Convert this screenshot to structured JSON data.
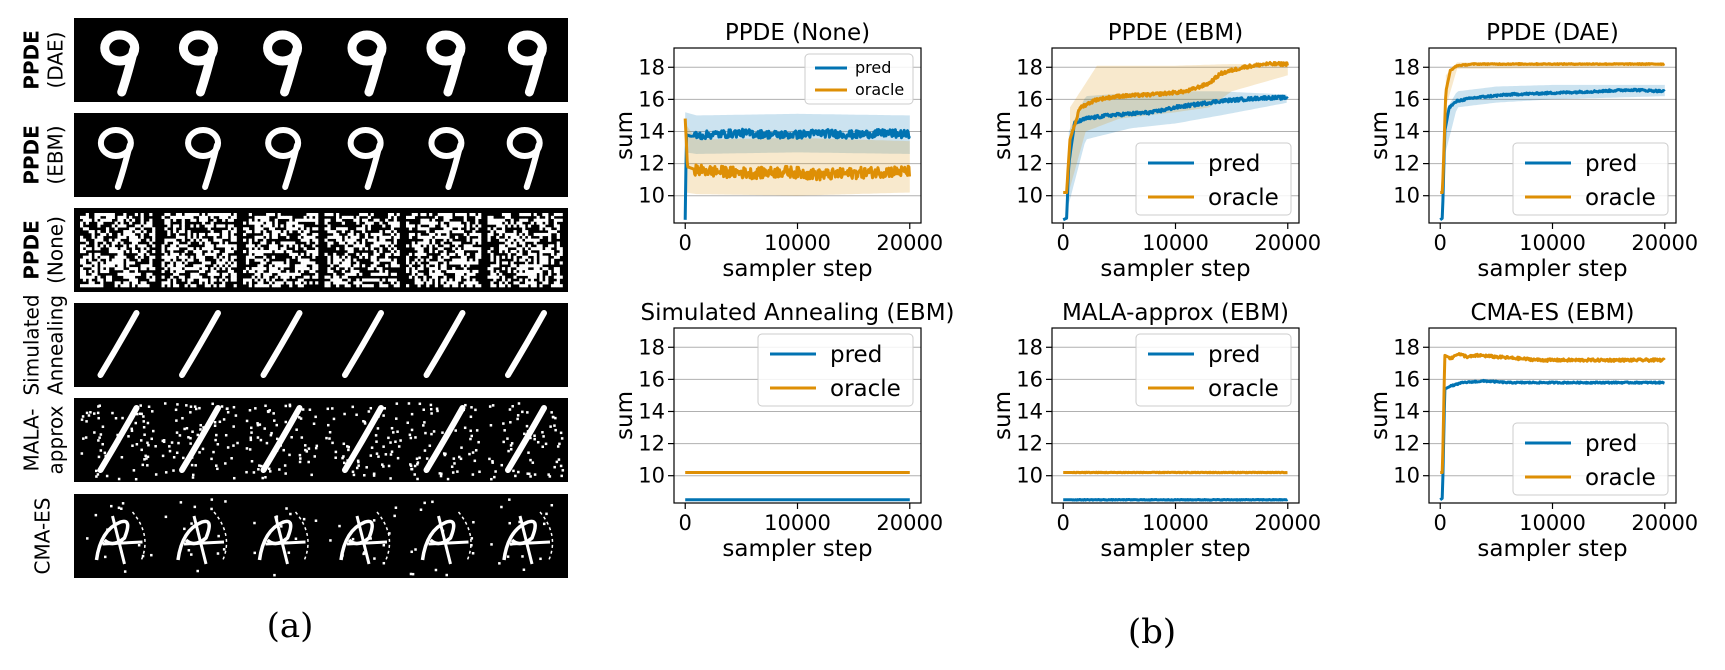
{
  "figure": {
    "panel_a_label": "(a)",
    "panel_b_label": "(b)"
  },
  "colors": {
    "pred": "#0173b2",
    "oracle": "#de8f05"
  },
  "panel_a": {
    "rows": [
      {
        "lines": [
          {
            "text": "PPDE",
            "bold": true
          },
          {
            "text": "(DAE)",
            "bold": false
          }
        ],
        "pattern": "digit-nine-clean"
      },
      {
        "lines": [
          {
            "text": "PPDE",
            "bold": true
          },
          {
            "text": "(EBM)",
            "bold": false
          }
        ],
        "pattern": "digit-nine-thin"
      },
      {
        "lines": [
          {
            "text": "PPDE",
            "bold": true
          },
          {
            "text": "(None)",
            "bold": false
          }
        ],
        "pattern": "noise"
      },
      {
        "lines": [
          {
            "text": "Simulated",
            "bold": false
          },
          {
            "text": "Annealing",
            "bold": false
          }
        ],
        "pattern": "digit-one-clean"
      },
      {
        "lines": [
          {
            "text": "MALA-",
            "bold": false
          },
          {
            "text": "approx",
            "bold": false
          }
        ],
        "pattern": "digit-one-speckled"
      },
      {
        "lines": [
          {
            "text": "CMA-ES",
            "bold": false
          }
        ],
        "pattern": "scribble"
      }
    ],
    "tiles_per_row": 6
  },
  "chart_data": [
    {
      "type": "line",
      "title": "PPDE (None)",
      "xlabel": "sampler step",
      "ylabel": "sum",
      "xlim": [
        -1000,
        21000
      ],
      "ylim": [
        8.3,
        19.2
      ],
      "xticks": [
        0,
        10000,
        20000
      ],
      "yticks": [
        10,
        12,
        14,
        16,
        18
      ],
      "grid": true,
      "legend": {
        "placement": "top-right",
        "size": "small"
      },
      "series": [
        {
          "name": "pred",
          "points": [
            [
              0,
              8.5
            ],
            [
              100,
              13.8
            ],
            [
              500,
              13.7
            ],
            [
              2000,
              13.8
            ],
            [
              5000,
              13.9
            ],
            [
              8000,
              13.8
            ],
            [
              10000,
              13.8
            ],
            [
              12000,
              13.9
            ],
            [
              15000,
              13.8
            ],
            [
              18000,
              13.9
            ],
            [
              20000,
              13.8
            ]
          ],
          "band": [
            [
              0,
              12.7
            ],
            [
              1000,
              12.6
            ],
            [
              10000,
              12.7
            ],
            [
              20000,
              12.6
            ]
          ],
          "band_hi": [
            [
              0,
              15.2
            ],
            [
              1000,
              15.0
            ],
            [
              10000,
              15.1
            ],
            [
              20000,
              15.0
            ]
          ],
          "noise": 0.25
        },
        {
          "name": "oracle",
          "points": [
            [
              0,
              14.8
            ],
            [
              200,
              11.8
            ],
            [
              1000,
              11.6
            ],
            [
              3000,
              11.5
            ],
            [
              6000,
              11.4
            ],
            [
              9000,
              11.5
            ],
            [
              12000,
              11.3
            ],
            [
              15000,
              11.4
            ],
            [
              18000,
              11.5
            ],
            [
              20000,
              11.5
            ]
          ],
          "band": [
            [
              0,
              10.2
            ],
            [
              1000,
              10.1
            ],
            [
              10000,
              10.0
            ],
            [
              20000,
              10.2
            ]
          ],
          "band_hi": [
            [
              0,
              14.5
            ],
            [
              1000,
              13.5
            ],
            [
              10000,
              13.6
            ],
            [
              20000,
              13.4
            ]
          ],
          "noise": 0.35
        }
      ]
    },
    {
      "type": "line",
      "title": "PPDE (EBM)",
      "xlabel": "sampler step",
      "ylabel": "sum",
      "xlim": [
        -1000,
        21000
      ],
      "ylim": [
        8.3,
        19.2
      ],
      "xticks": [
        0,
        10000,
        20000
      ],
      "yticks": [
        10,
        12,
        14,
        16,
        18
      ],
      "grid": true,
      "legend": {
        "placement": "bottom-right",
        "size": "large"
      },
      "series": [
        {
          "name": "pred",
          "points": [
            [
              0,
              8.5
            ],
            [
              300,
              8.6
            ],
            [
              500,
              12.0
            ],
            [
              1000,
              14.5
            ],
            [
              2000,
              14.8
            ],
            [
              4000,
              15.0
            ],
            [
              6000,
              15.1
            ],
            [
              8000,
              15.2
            ],
            [
              10000,
              15.5
            ],
            [
              12000,
              15.7
            ],
            [
              14000,
              15.9
            ],
            [
              16000,
              16.0
            ],
            [
              18000,
              16.1
            ],
            [
              20000,
              16.1
            ]
          ],
          "band": [
            [
              500,
              9.5
            ],
            [
              2000,
              13.5
            ],
            [
              6000,
              14.2
            ],
            [
              10000,
              14.5
            ],
            [
              14000,
              15.0
            ],
            [
              20000,
              15.8
            ]
          ],
          "band_hi": [
            [
              500,
              14.0
            ],
            [
              2000,
              16.2
            ],
            [
              6000,
              16.4
            ],
            [
              10000,
              16.5
            ],
            [
              14000,
              16.5
            ],
            [
              20000,
              16.3
            ]
          ],
          "noise": 0.1
        },
        {
          "name": "oracle",
          "points": [
            [
              0,
              10.2
            ],
            [
              300,
              10.2
            ],
            [
              600,
              13.5
            ],
            [
              1500,
              15.5
            ],
            [
              3000,
              16.0
            ],
            [
              5000,
              16.2
            ],
            [
              8000,
              16.3
            ],
            [
              11000,
              16.5
            ],
            [
              13000,
              17.0
            ],
            [
              14000,
              17.6
            ],
            [
              16000,
              18.0
            ],
            [
              18000,
              18.2
            ],
            [
              20000,
              18.2
            ]
          ],
          "band": [
            [
              600,
              10.5
            ],
            [
              2000,
              14.0
            ],
            [
              5000,
              14.8
            ],
            [
              10000,
              15.2
            ],
            [
              13000,
              15.5
            ],
            [
              15000,
              16.5
            ],
            [
              20000,
              17.5
            ]
          ],
          "band_hi": [
            [
              600,
              15.5
            ],
            [
              2000,
              17.0
            ],
            [
              3000,
              18.1
            ],
            [
              10000,
              18.1
            ],
            [
              15000,
              18.2
            ],
            [
              20000,
              18.2
            ]
          ],
          "noise": 0.1
        }
      ]
    },
    {
      "type": "line",
      "title": "PPDE (DAE)",
      "xlabel": "sampler step",
      "ylabel": "sum",
      "xlim": [
        -1000,
        21000
      ],
      "ylim": [
        8.3,
        19.2
      ],
      "xticks": [
        0,
        10000,
        20000
      ],
      "yticks": [
        10,
        12,
        14,
        16,
        18
      ],
      "grid": true,
      "legend": {
        "placement": "bottom-right",
        "size": "large"
      },
      "series": [
        {
          "name": "pred",
          "points": [
            [
              0,
              8.5
            ],
            [
              200,
              8.6
            ],
            [
              400,
              14.0
            ],
            [
              800,
              15.5
            ],
            [
              1500,
              15.9
            ],
            [
              3000,
              16.1
            ],
            [
              6000,
              16.3
            ],
            [
              10000,
              16.4
            ],
            [
              14000,
              16.5
            ],
            [
              17000,
              16.6
            ],
            [
              20000,
              16.5
            ]
          ],
          "band": [
            [
              400,
              12.5
            ],
            [
              1500,
              15.5
            ],
            [
              5000,
              15.8
            ],
            [
              10000,
              16.0
            ],
            [
              20000,
              16.2
            ]
          ],
          "band_hi": [
            [
              400,
              15.2
            ],
            [
              1500,
              16.5
            ],
            [
              5000,
              16.8
            ],
            [
              10000,
              16.9
            ],
            [
              20000,
              16.9
            ]
          ],
          "noise": 0.06
        },
        {
          "name": "oracle",
          "points": [
            [
              0,
              10.2
            ],
            [
              200,
              10.2
            ],
            [
              500,
              16.5
            ],
            [
              900,
              17.8
            ],
            [
              1500,
              18.1
            ],
            [
              3000,
              18.2
            ],
            [
              10000,
              18.2
            ],
            [
              20000,
              18.2
            ]
          ],
          "band": [
            [
              500,
              15.5
            ],
            [
              1500,
              17.9
            ],
            [
              20000,
              18.0
            ]
          ],
          "band_hi": [
            [
              500,
              17.5
            ],
            [
              1500,
              18.3
            ],
            [
              20000,
              18.3
            ]
          ],
          "noise": 0.03
        }
      ]
    },
    {
      "type": "line",
      "title": "Simulated Annealing (EBM)",
      "xlabel": "sampler step",
      "ylabel": "sum",
      "xlim": [
        -1000,
        21000
      ],
      "ylim": [
        8.3,
        19.2
      ],
      "xticks": [
        0,
        10000,
        20000
      ],
      "yticks": [
        10,
        12,
        14,
        16,
        18
      ],
      "grid": true,
      "legend": {
        "placement": "top-right",
        "size": "large"
      },
      "series": [
        {
          "name": "pred",
          "points": [
            [
              0,
              8.5
            ],
            [
              20000,
              8.5
            ]
          ],
          "noise": 0
        },
        {
          "name": "oracle",
          "points": [
            [
              0,
              10.2
            ],
            [
              20000,
              10.2
            ]
          ],
          "noise": 0
        }
      ]
    },
    {
      "type": "line",
      "title": "MALA-approx (EBM)",
      "xlabel": "sampler step",
      "ylabel": "sum",
      "xlim": [
        -1000,
        21000
      ],
      "ylim": [
        8.3,
        19.2
      ],
      "xticks": [
        0,
        10000,
        20000
      ],
      "yticks": [
        10,
        12,
        14,
        16,
        18
      ],
      "grid": true,
      "legend": {
        "placement": "top-right",
        "size": "large"
      },
      "series": [
        {
          "name": "pred",
          "points": [
            [
              0,
              8.5
            ],
            [
              20000,
              8.5
            ]
          ],
          "noise": 0.02
        },
        {
          "name": "oracle",
          "points": [
            [
              0,
              10.2
            ],
            [
              20000,
              10.2
            ]
          ],
          "noise": 0.02
        }
      ]
    },
    {
      "type": "line",
      "title": "CMA-ES (EBM)",
      "xlabel": "sampler step",
      "ylabel": "sum",
      "xlim": [
        -1000,
        21000
      ],
      "ylim": [
        8.3,
        19.2
      ],
      "xticks": [
        0,
        10000,
        20000
      ],
      "yticks": [
        10,
        12,
        14,
        16,
        18
      ],
      "grid": true,
      "legend": {
        "placement": "bottom-right",
        "size": "large"
      },
      "series": [
        {
          "name": "pred",
          "points": [
            [
              0,
              8.5
            ],
            [
              200,
              8.6
            ],
            [
              400,
              15.4
            ],
            [
              1000,
              15.6
            ],
            [
              2000,
              15.8
            ],
            [
              4000,
              15.9
            ],
            [
              6000,
              15.8
            ],
            [
              10000,
              15.8
            ],
            [
              15000,
              15.8
            ],
            [
              20000,
              15.8
            ]
          ],
          "noise": 0.04
        },
        {
          "name": "oracle",
          "points": [
            [
              0,
              10.2
            ],
            [
              200,
              10.2
            ],
            [
              400,
              17.5
            ],
            [
              1000,
              17.3
            ],
            [
              1500,
              17.6
            ],
            [
              2500,
              17.4
            ],
            [
              3500,
              17.5
            ],
            [
              5000,
              17.4
            ],
            [
              7000,
              17.3
            ],
            [
              9000,
              17.2
            ],
            [
              12000,
              17.2
            ],
            [
              16000,
              17.2
            ],
            [
              20000,
              17.2
            ]
          ],
          "noise": 0.08
        }
      ]
    }
  ]
}
